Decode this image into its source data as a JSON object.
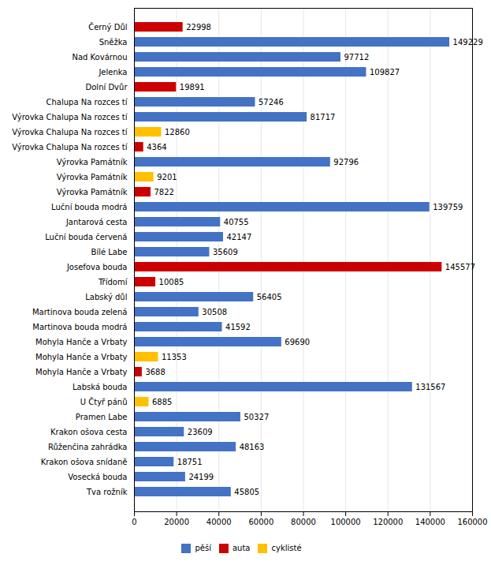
{
  "chart_data": {
    "type": "bar",
    "orientation": "horizontal",
    "categories": [
      "Černý Důl",
      "Sněžka",
      "Nad Kovárnou",
      "Jelenka",
      "Dolní Dvůr",
      "Chalupa Na rozces tí",
      "Výrovka Chalupa Na rozces tí",
      "Výrovka Chalupa Na rozces tí",
      "Výrovka Chalupa Na rozces tí",
      "Výrovka Památník",
      "Výrovka Památník",
      "Výrovka Památník",
      "Luční bouda modrá",
      "Jantarová cesta",
      "Luční bouda červená",
      "Bílé Labe",
      "Josefova bouda",
      "Třídomí",
      "Labský důl",
      "Martinova bouda zelená",
      "Martinova bouda modrá",
      "Mohyla Hanče a Vrbaty",
      "Mohyla Hanče a Vrbaty",
      "Mohyla Hanče a Vrbaty",
      "Labská bouda",
      "U Čtyř pánů",
      "Pramen Labe",
      "Krakon ošova cesta",
      "Růženčina zahrádka",
      "Krakon ošova snídaně",
      "Vosecká bouda",
      "Tva rožník"
    ],
    "series": [
      {
        "name": "pěší",
        "color": "#4472c4",
        "values": [
          null,
          149229,
          97712,
          109827,
          null,
          57246,
          81717,
          null,
          null,
          92796,
          null,
          null,
          139759,
          40755,
          42147,
          35609,
          null,
          null,
          56405,
          30508,
          41592,
          69690,
          null,
          null,
          131567,
          null,
          50327,
          23609,
          48163,
          18751,
          24199,
          45805
        ]
      },
      {
        "name": "auta",
        "color": "#cc0000",
        "values": [
          22998,
          null,
          null,
          null,
          19891,
          null,
          null,
          null,
          4364,
          null,
          null,
          7822,
          null,
          null,
          null,
          null,
          145577,
          10085,
          null,
          null,
          null,
          null,
          null,
          3688,
          null,
          null,
          null,
          null,
          null,
          null,
          null,
          null
        ]
      },
      {
        "name": "cyklisté",
        "color": "#ffc000",
        "values": [
          null,
          null,
          null,
          null,
          null,
          null,
          null,
          12860,
          null,
          null,
          9201,
          null,
          null,
          null,
          null,
          null,
          null,
          null,
          null,
          null,
          null,
          null,
          11353,
          null,
          null,
          6885,
          null,
          null,
          null,
          null,
          null,
          null
        ]
      }
    ],
    "xlim": [
      0,
      160000
    ],
    "xticks": [
      0,
      20000,
      40000,
      60000,
      80000,
      100000,
      120000,
      140000,
      160000
    ],
    "grid": true,
    "data_labels": true,
    "legend": "bottom"
  }
}
